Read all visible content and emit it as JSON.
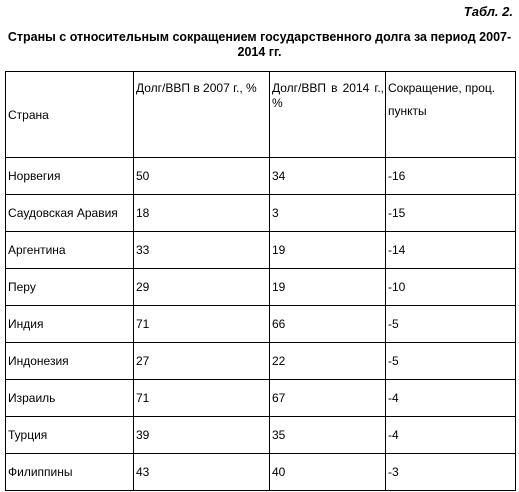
{
  "table_label": "Табл. 2.",
  "title": "Страны с относительным сокращением государственного долга за период 2007-2014 гг.",
  "columns": {
    "country": "Страна",
    "debt_2007": "Долг/ВВП в 2007 г., %",
    "debt_2014": "Долг/ВВП в 2014 г., %",
    "reduction_line1": "Сокращение, проц.",
    "reduction_line2": "пункты"
  },
  "rows": [
    {
      "country": "Норвегия",
      "debt_2007": "50",
      "debt_2014": "34",
      "reduction": "-16"
    },
    {
      "country": "Саудовская Аравия",
      "debt_2007": "18",
      "debt_2014": "3",
      "reduction": "-15"
    },
    {
      "country": "Аргентина",
      "debt_2007": "33",
      "debt_2014": "19",
      "reduction": "-14"
    },
    {
      "country": "Перу",
      "debt_2007": "29",
      "debt_2014": "19",
      "reduction": "-10"
    },
    {
      "country": "Индия",
      "debt_2007": "71",
      "debt_2014": "66",
      "reduction": "-5"
    },
    {
      "country": "Индонезия",
      "debt_2007": "27",
      "debt_2014": "22",
      "reduction": "-5"
    },
    {
      "country": "Израиль",
      "debt_2007": "71",
      "debt_2014": "67",
      "reduction": "-4"
    },
    {
      "country": "Турция",
      "debt_2007": "39",
      "debt_2014": "35",
      "reduction": "-4"
    },
    {
      "country": "Филиппины",
      "debt_2007": "43",
      "debt_2014": "40",
      "reduction": "-3"
    }
  ]
}
